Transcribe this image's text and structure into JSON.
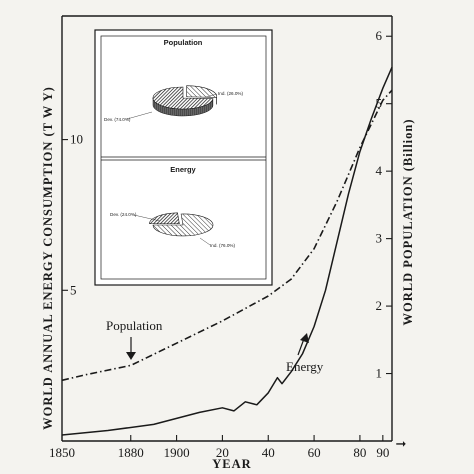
{
  "chart_data": [
    {
      "type": "line",
      "title": "",
      "xlabel": "YEAR",
      "ylabel_left": "WORLD ANNUAL ENERGY CONSUMPTION (T W Y)",
      "ylabel_right": "WORLD POPULATION (Billion)",
      "x_tick_labels": [
        "1850",
        "1880",
        "1900",
        "20",
        "40",
        "60",
        "80",
        "90"
      ],
      "x_ticks": [
        1850,
        1880,
        1900,
        1920,
        1940,
        1960,
        1980,
        1990
      ],
      "xlim": [
        1850,
        1994
      ],
      "y_left_ticks": [
        5,
        10
      ],
      "y_left_tick_labels": [
        "5",
        "10"
      ],
      "ylim_left": [
        0,
        14.1
      ],
      "y_right_ticks": [
        1,
        2,
        3,
        4,
        5,
        6
      ],
      "y_right_tick_labels": [
        "1",
        "2",
        "3",
        "4",
        "5",
        "6"
      ],
      "ylim_right": [
        0,
        6.3
      ],
      "series": [
        {
          "name": "Population",
          "axis": "right",
          "style": "dash-dot",
          "x": [
            1850,
            1860,
            1880,
            1900,
            1920,
            1940,
            1950,
            1960,
            1970,
            1975,
            1980,
            1985,
            1990,
            1994
          ],
          "y": [
            0.9,
            0.98,
            1.12,
            1.45,
            1.78,
            2.15,
            2.4,
            2.85,
            3.55,
            3.95,
            4.35,
            4.7,
            5.05,
            5.2
          ]
        },
        {
          "name": "Energy",
          "axis": "left",
          "style": "solid",
          "x": [
            1850,
            1870,
            1890,
            1910,
            1920,
            1925,
            1930,
            1935,
            1940,
            1944,
            1946,
            1950,
            1955,
            1960,
            1965,
            1970,
            1975,
            1980,
            1985,
            1990,
            1994
          ],
          "y": [
            0.2,
            0.35,
            0.55,
            0.95,
            1.1,
            1.0,
            1.3,
            1.2,
            1.6,
            2.1,
            1.9,
            2.3,
            2.9,
            3.8,
            5.0,
            6.6,
            8.2,
            9.6,
            10.7,
            11.7,
            12.4
          ]
        }
      ],
      "annotations": [
        "Population",
        "Energy"
      ],
      "grid": false
    },
    {
      "type": "pie",
      "title": "Population",
      "slices": [
        {
          "label": "Ind. (26.0%)",
          "value": 26.0
        },
        {
          "label": "Dev. (74.0%)",
          "value": 74.0
        }
      ]
    },
    {
      "type": "pie",
      "title": "Energy",
      "slices": [
        {
          "label": "Dev. (24.0%)",
          "value": 24.0
        },
        {
          "label": "Ind. (76.0%)",
          "value": 76.0
        }
      ]
    }
  ]
}
